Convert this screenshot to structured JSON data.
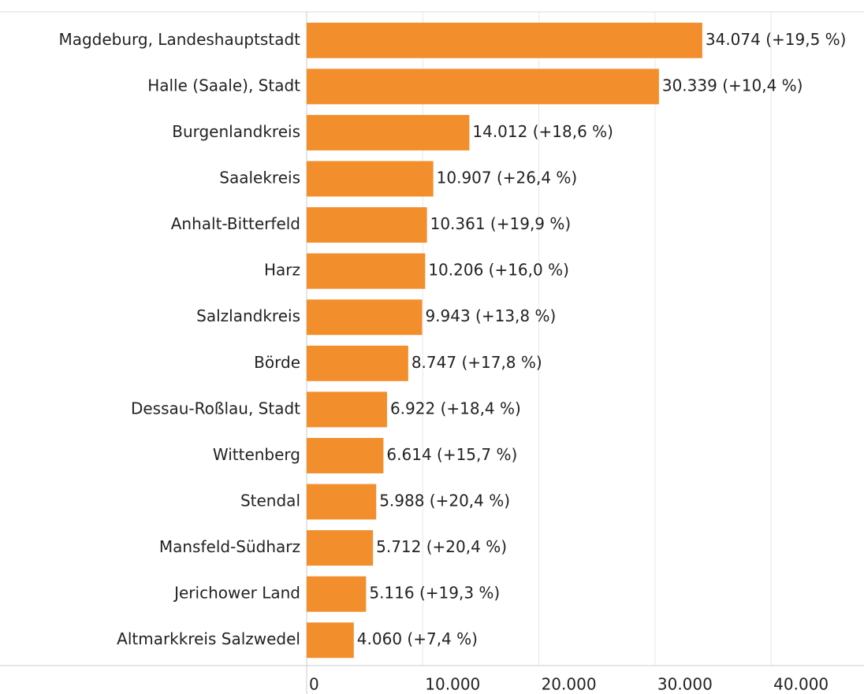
{
  "chart_data": {
    "type": "hbar",
    "categories": [
      "Magdeburg, Landeshauptstadt",
      "Halle (Saale), Stadt",
      "Burgenlandkreis",
      "Saalekreis",
      "Anhalt-Bitterfeld",
      "Harz",
      "Salzlandkreis",
      "Börde",
      "Dessau-Roßlau, Stadt",
      "Wittenberg",
      "Stendal",
      "Mansfeld-Südharz",
      "Jerichower Land",
      "Altmarkkreis Salzwedel"
    ],
    "values": [
      34074,
      30339,
      14012,
      10907,
      10361,
      10206,
      9943,
      8747,
      6922,
      6614,
      5988,
      5712,
      5116,
      4060
    ],
    "value_labels": [
      "34.074 (+19,5 %)",
      "30.339 (+10,4 %)",
      "14.012 (+18,6 %)",
      "10.907 (+26,4 %)",
      "10.361 (+19,9 %)",
      "10.206 (+16,0 %)",
      "9.943 (+13,8 %)",
      "8.747 (+17,8 %)",
      "6.922 (+18,4 %)",
      "6.614 (+15,7 %)",
      "5.988 (+20,4 %)",
      "5.712 (+20,4 %)",
      "5.116 (+19,3 %)",
      "4.060 (+7,4 %)"
    ],
    "color": "#f28e2b",
    "xlim": [
      0,
      48000
    ],
    "xticks": [
      0,
      {
        "value": 10000,
        "label": "10.000"
      },
      {
        "value": 20000,
        "label": "20.000"
      },
      {
        "value": 30000,
        "label": "30.000"
      },
      {
        "value": 40000,
        "label": "40.000"
      }
    ],
    "grid": true
  }
}
